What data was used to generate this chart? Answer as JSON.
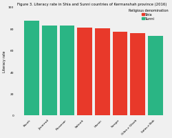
{
  "title": "Figure 3. Literacy rate in Shia and Sunni countries of Kermanshah province (2016)",
  "ylabel": "Literacy rate",
  "legend_title": "Religious denomination",
  "categories": [
    "Paveh",
    "Javanrud",
    "Ravansar",
    "Sahneh",
    "Harsin",
    "Sonqor",
    "Gilan-e Gharb",
    "Salas-e Bab"
  ],
  "values": [
    87,
    83,
    83,
    81,
    80,
    77,
    76,
    73
  ],
  "colors": [
    "#2ab584",
    "#2ab584",
    "#2ab584",
    "#e8392a",
    "#e8392a",
    "#e8392a",
    "#e8392a",
    "#2ab584"
  ],
  "shia_color": "#e8392a",
  "sunni_color": "#2ab584",
  "ylim": [
    0,
    100
  ],
  "yticks": [
    0,
    20,
    40,
    60,
    80,
    100
  ],
  "bg_color": "#f0f0f0",
  "title_fontsize": 3.8,
  "label_fontsize": 3.5,
  "tick_fontsize": 3.2,
  "legend_fontsize": 3.5
}
